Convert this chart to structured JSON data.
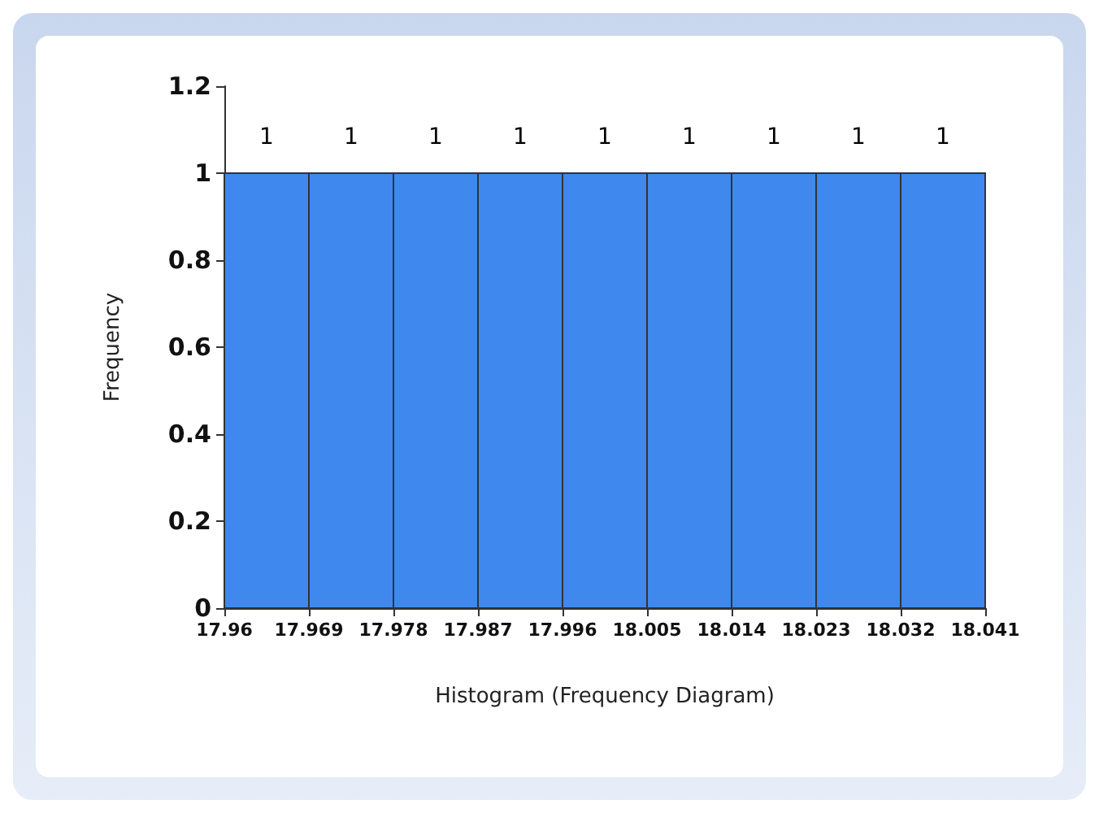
{
  "chart_data": {
    "type": "histogram",
    "xlabel": "Histogram (Frequency Diagram)",
    "ylabel": "Frequency",
    "bins": [
      17.96,
      17.969,
      17.978,
      17.987,
      17.996,
      18.005,
      18.014,
      18.023,
      18.032,
      18.041
    ],
    "values": [
      1,
      1,
      1,
      1,
      1,
      1,
      1,
      1,
      1
    ],
    "color": "#3f88ee",
    "xlim": [
      17.96,
      18.041
    ],
    "xticks": [
      17.96,
      17.969,
      17.978,
      17.987,
      17.996,
      18.005,
      18.014,
      18.023,
      18.032,
      18.041
    ],
    "ylim": [
      0,
      1.2
    ],
    "yticks": [
      0,
      0.2,
      0.4,
      0.6,
      0.8,
      1,
      1.2
    ],
    "data_labels": true,
    "grid": false
  }
}
